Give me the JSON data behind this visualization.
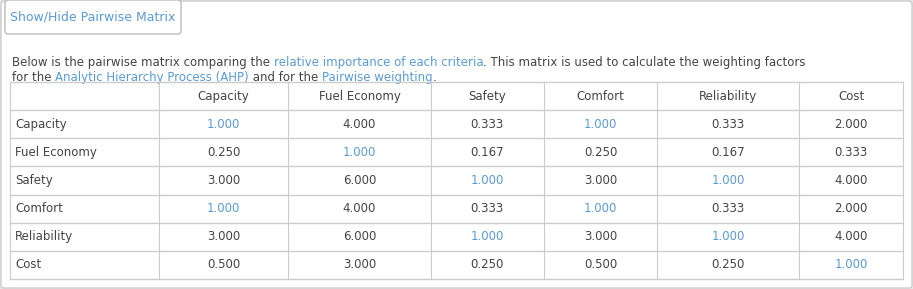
{
  "button_text": "Show/Hide Pairwise Matrix",
  "line1_segments": [
    [
      "Below is the pairwise matrix comparing the ",
      "#444444"
    ],
    [
      "relative importance of each criteria",
      "#5b9bd5"
    ],
    [
      ". This matrix is used to calculate the weighting factors",
      "#444444"
    ]
  ],
  "line2_segments": [
    [
      "for the ",
      "#444444"
    ],
    [
      "Analytic Hierarchy Process (AHP)",
      "#5b9bd5"
    ],
    [
      " and for the ",
      "#444444"
    ],
    [
      "Pairwise weighting",
      "#5b9bd5"
    ],
    [
      ".",
      "#444444"
    ]
  ],
  "col_headers": [
    "",
    "Capacity",
    "Fuel Economy",
    "Safety",
    "Comfort",
    "Reliability",
    "Cost"
  ],
  "row_headers": [
    "Capacity",
    "Fuel Economy",
    "Safety",
    "Comfort",
    "Reliability",
    "Cost"
  ],
  "matrix": [
    [
      1.0,
      4.0,
      0.333,
      1.0,
      0.333,
      2.0
    ],
    [
      0.25,
      1.0,
      0.167,
      0.25,
      0.167,
      0.333
    ],
    [
      3.0,
      6.0,
      1.0,
      3.0,
      1.0,
      4.0
    ],
    [
      1.0,
      4.0,
      0.333,
      1.0,
      0.333,
      2.0
    ],
    [
      3.0,
      6.0,
      1.0,
      3.0,
      1.0,
      4.0
    ],
    [
      0.5,
      3.0,
      0.25,
      0.5,
      0.25,
      1.0
    ]
  ],
  "bg_color": "#e8e8e8",
  "panel_color": "#ffffff",
  "border_color": "#cccccc",
  "button_bg": "#ffffff",
  "button_border": "#bbbbbb",
  "button_text_color": "#5b9bd5",
  "table_text_color": "#444444",
  "blue_text_color": "#5b9bd5",
  "header_text_color": "#444444",
  "grid_color": "#cccccc",
  "font_size_button": 9,
  "font_size_desc": 8.5,
  "font_size_table": 8.5
}
